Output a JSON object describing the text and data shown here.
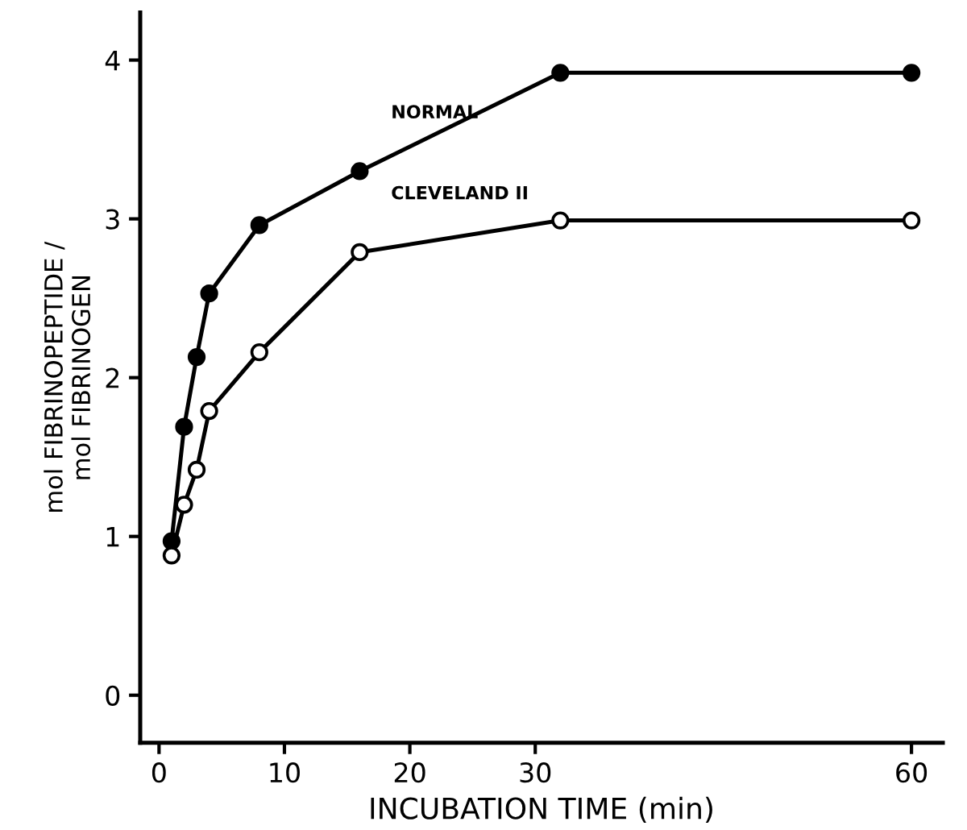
{
  "chart_data": {
    "type": "line",
    "xlabel": "INCUBATION TIME (min)",
    "ylabel": "mol FIBRINOPEPTIDE /\nmol FIBRINOGEN",
    "xlim": [
      -1.5,
      62.5
    ],
    "xticks": [
      0,
      10,
      20,
      30,
      60
    ],
    "ylim": [
      -0.3,
      4.3
    ],
    "yticks": [
      0,
      1,
      2,
      3,
      4
    ],
    "marker": "circle",
    "line_style": "solid",
    "series": [
      {
        "name": "NORMAL",
        "color": "#000000",
        "colors": [
          "#000000",
          "#000000",
          "#000000",
          "#000000",
          "#000000",
          "#000000",
          "#000000",
          "#000000"
        ],
        "x": [
          1,
          2,
          3,
          4,
          8,
          16,
          32,
          60
        ],
        "values": [
          0.97,
          1.69,
          2.13,
          2.53,
          2.96,
          3.3,
          3.92,
          3.92
        ]
      },
      {
        "name": "CLEVELAND II",
        "color": "#000000",
        "colors": [
          "#ffffff",
          "#ffffff",
          "#ffffff",
          "#ffffff",
          "#ffffff",
          "#ffffff",
          "#ffffff",
          "#ffffff"
        ],
        "x": [
          1,
          2,
          3,
          4,
          8,
          16,
          32,
          60
        ],
        "values": [
          0.88,
          1.2,
          1.42,
          1.79,
          2.16,
          2.79,
          2.99,
          2.99
        ]
      }
    ]
  }
}
